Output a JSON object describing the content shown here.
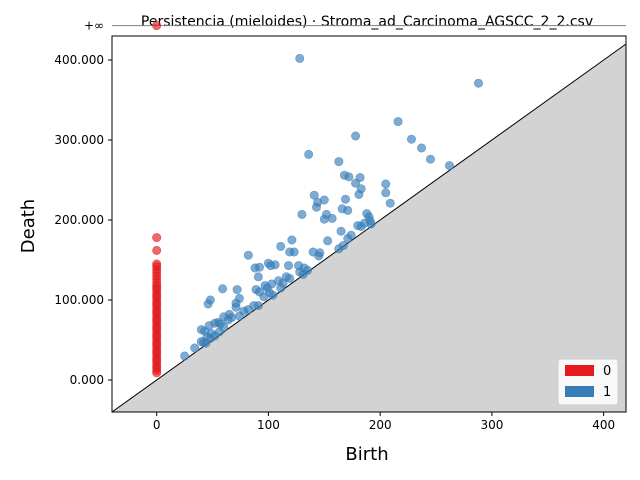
{
  "chart_data": {
    "type": "scatter",
    "title": "Persistencia (mieloides) · Stroma_ad_Carcinoma_AGSCC_2_2.csv",
    "xlabel": "Birth",
    "ylabel": "Death",
    "xlim": [
      -40,
      420
    ],
    "ylim": [
      -40,
      430
    ],
    "xticks": [
      0,
      100,
      200,
      300,
      400
    ],
    "xtick_labels": [
      "0",
      "100",
      "200",
      "300",
      "400"
    ],
    "yticks": [
      0,
      100,
      200,
      300,
      400
    ],
    "ytick_labels": [
      "0.000",
      "100.000",
      "200.000",
      "300.000",
      "400.000"
    ],
    "infinity_value": 443,
    "infinity_label": "+∞",
    "grid": false,
    "diagonal": true,
    "legend_position": "lower-right",
    "series": [
      {
        "name": "0",
        "color": "#e41a1c",
        "points": [
          [
            0,
            443
          ],
          [
            0,
            178
          ],
          [
            0,
            162
          ],
          [
            0,
            145
          ],
          [
            0,
            142
          ],
          [
            0,
            138
          ],
          [
            0,
            134
          ],
          [
            0,
            130
          ],
          [
            0,
            126
          ],
          [
            0,
            122
          ],
          [
            0,
            118
          ],
          [
            0,
            115
          ],
          [
            0,
            112
          ],
          [
            0,
            108
          ],
          [
            0,
            105
          ],
          [
            0,
            102
          ],
          [
            0,
            98
          ],
          [
            0,
            95
          ],
          [
            0,
            92
          ],
          [
            0,
            88
          ],
          [
            0,
            85
          ],
          [
            0,
            82
          ],
          [
            0,
            78
          ],
          [
            0,
            75
          ],
          [
            0,
            72
          ],
          [
            0,
            68
          ],
          [
            0,
            65
          ],
          [
            0,
            62
          ],
          [
            0,
            58
          ],
          [
            0,
            55
          ],
          [
            0,
            52
          ],
          [
            0,
            48
          ],
          [
            0,
            45
          ],
          [
            0,
            42
          ],
          [
            0,
            38
          ],
          [
            0,
            35
          ],
          [
            0,
            32
          ],
          [
            0,
            28
          ],
          [
            0,
            25
          ],
          [
            0,
            22
          ],
          [
            0,
            18
          ],
          [
            0,
            15
          ],
          [
            0,
            12
          ],
          [
            0,
            9
          ]
        ]
      },
      {
        "name": "1",
        "color": "#377eb8",
        "points": [
          [
            128,
            402
          ],
          [
            288,
            371
          ],
          [
            216,
            323
          ],
          [
            178,
            305
          ],
          [
            228,
            301
          ],
          [
            237,
            290
          ],
          [
            136,
            282
          ],
          [
            245,
            276
          ],
          [
            163,
            273
          ],
          [
            262,
            268
          ],
          [
            168,
            256
          ],
          [
            172,
            254
          ],
          [
            182,
            253
          ],
          [
            178,
            246
          ],
          [
            205,
            245
          ],
          [
            183,
            239
          ],
          [
            205,
            234
          ],
          [
            141,
            231
          ],
          [
            181,
            232
          ],
          [
            150,
            225
          ],
          [
            169,
            226
          ],
          [
            144,
            222
          ],
          [
            209,
            221
          ],
          [
            143,
            216
          ],
          [
            166,
            214
          ],
          [
            171,
            212
          ],
          [
            130,
            207
          ],
          [
            152,
            207
          ],
          [
            188,
            208
          ],
          [
            190,
            204
          ],
          [
            157,
            202
          ],
          [
            150,
            201
          ],
          [
            191,
            199
          ],
          [
            186,
            196
          ],
          [
            192,
            195
          ],
          [
            180,
            193
          ],
          [
            183,
            192
          ],
          [
            165,
            186
          ],
          [
            174,
            181
          ],
          [
            171,
            177
          ],
          [
            153,
            174
          ],
          [
            121,
            175
          ],
          [
            167,
            168
          ],
          [
            163,
            164
          ],
          [
            111,
            167
          ],
          [
            123,
            160
          ],
          [
            146,
            159
          ],
          [
            119,
            160
          ],
          [
            140,
            160
          ],
          [
            145,
            155
          ],
          [
            82,
            156
          ],
          [
            100,
            146
          ],
          [
            106,
            144
          ],
          [
            92,
            141
          ],
          [
            88,
            140
          ],
          [
            102,
            143
          ],
          [
            118,
            143
          ],
          [
            127,
            143
          ],
          [
            132,
            140
          ],
          [
            135,
            137
          ],
          [
            128,
            135
          ],
          [
            131,
            132
          ],
          [
            91,
            129
          ],
          [
            116,
            129
          ],
          [
            119,
            127
          ],
          [
            109,
            124
          ],
          [
            113,
            121
          ],
          [
            103,
            120
          ],
          [
            97,
            118
          ],
          [
            99,
            115
          ],
          [
            111,
            115
          ],
          [
            89,
            113
          ],
          [
            72,
            113
          ],
          [
            59,
            114
          ],
          [
            92,
            110
          ],
          [
            101,
            109
          ],
          [
            104,
            106
          ],
          [
            96,
            104
          ],
          [
            74,
            102
          ],
          [
            48,
            100
          ],
          [
            71,
            96
          ],
          [
            46,
            95
          ],
          [
            87,
            93
          ],
          [
            91,
            93
          ],
          [
            82,
            88
          ],
          [
            71,
            91
          ],
          [
            65,
            82
          ],
          [
            74,
            80
          ],
          [
            78,
            86
          ],
          [
            60,
            79
          ],
          [
            67,
            78
          ],
          [
            64,
            75
          ],
          [
            55,
            72
          ],
          [
            57,
            70
          ],
          [
            52,
            71
          ],
          [
            47,
            68
          ],
          [
            40,
            63
          ],
          [
            43,
            61
          ],
          [
            60,
            66
          ],
          [
            56,
            60
          ],
          [
            49,
            58
          ],
          [
            52,
            55
          ],
          [
            45,
            54
          ],
          [
            48,
            52
          ],
          [
            40,
            48
          ],
          [
            42,
            47
          ],
          [
            44,
            46
          ],
          [
            34,
            40
          ],
          [
            25,
            30
          ]
        ]
      }
    ]
  }
}
